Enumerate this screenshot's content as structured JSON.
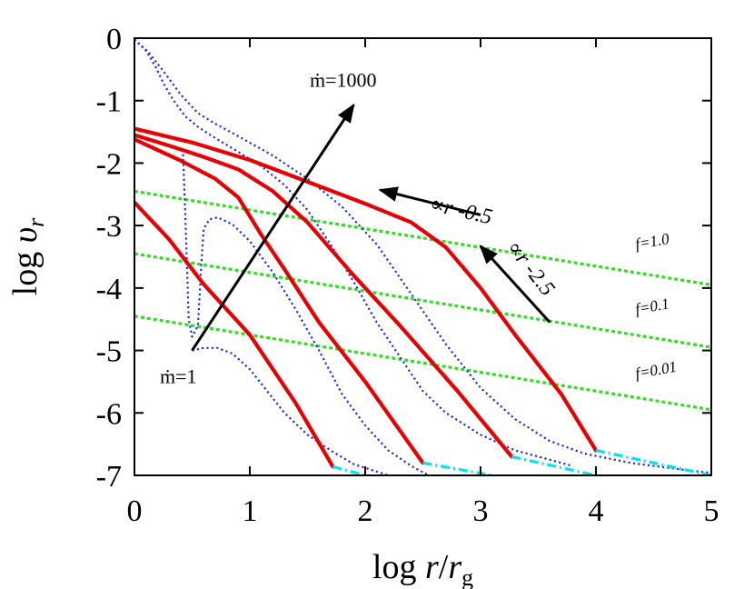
{
  "chart_data": {
    "type": "line",
    "xlabel": "log r/r_g",
    "ylabel": "log υ_r",
    "xlim": [
      0,
      5
    ],
    "ylim": [
      -7,
      0
    ],
    "x_ticks": [
      0,
      1,
      2,
      3,
      4,
      5
    ],
    "y_ticks": [
      0,
      -1,
      -2,
      -3,
      -4,
      -5,
      -6,
      -7
    ],
    "x_tick_labels": [
      "0",
      "1",
      "2",
      "3",
      "4",
      "5"
    ],
    "y_tick_labels": [
      "0",
      "-1",
      "-2",
      "-3",
      "-4",
      "-5",
      "-6",
      "-7"
    ],
    "series": [
      {
        "style": "red-solid",
        "points": [
          [
            0,
            -2.63
          ],
          [
            0.3,
            -3.22
          ],
          [
            0.6,
            -3.94
          ],
          [
            1.0,
            -4.75
          ],
          [
            1.4,
            -5.85
          ],
          [
            1.72,
            -6.86
          ]
        ]
      },
      {
        "style": "red-solid",
        "points": [
          [
            0,
            -1.62
          ],
          [
            0.4,
            -1.96
          ],
          [
            0.7,
            -2.25
          ],
          [
            0.9,
            -2.55
          ],
          [
            1.1,
            -3.15
          ],
          [
            1.3,
            -3.7
          ],
          [
            1.6,
            -4.55
          ],
          [
            2.0,
            -5.5
          ],
          [
            2.5,
            -6.8
          ]
        ]
      },
      {
        "style": "red-solid",
        "points": [
          [
            0,
            -1.55
          ],
          [
            0.3,
            -1.72
          ],
          [
            0.6,
            -1.9
          ],
          [
            0.9,
            -2.1
          ],
          [
            1.2,
            -2.45
          ],
          [
            1.5,
            -2.95
          ],
          [
            1.9,
            -3.8
          ],
          [
            2.3,
            -4.6
          ],
          [
            2.8,
            -5.65
          ],
          [
            3.27,
            -6.7
          ]
        ]
      },
      {
        "style": "red-solid",
        "points": [
          [
            0,
            -1.45
          ],
          [
            0.5,
            -1.67
          ],
          [
            1.0,
            -1.95
          ],
          [
            1.5,
            -2.3
          ],
          [
            2.0,
            -2.65
          ],
          [
            2.4,
            -2.95
          ],
          [
            2.7,
            -3.35
          ],
          [
            3.0,
            -4.0
          ],
          [
            3.3,
            -4.75
          ],
          [
            3.7,
            -5.7
          ],
          [
            4.0,
            -6.6
          ]
        ]
      },
      {
        "style": "blue-dotted",
        "points": [
          [
            0.0,
            -0.02
          ],
          [
            0.12,
            -0.22
          ],
          [
            0.26,
            -0.55
          ],
          [
            0.4,
            -0.9
          ],
          [
            0.55,
            -1.2
          ],
          [
            0.7,
            -1.37
          ],
          [
            0.9,
            -1.57
          ],
          [
            1.2,
            -1.88
          ],
          [
            1.5,
            -2.25
          ],
          [
            1.8,
            -2.7
          ],
          [
            2.1,
            -3.3
          ],
          [
            2.4,
            -4.1
          ],
          [
            2.7,
            -4.9
          ],
          [
            3.0,
            -5.6
          ],
          [
            3.3,
            -6.1
          ],
          [
            3.6,
            -6.45
          ],
          [
            3.9,
            -6.65
          ],
          [
            4.3,
            -6.8
          ],
          [
            4.8,
            -6.92
          ],
          [
            5.0,
            -6.96
          ]
        ]
      },
      {
        "style": "blue-dotted",
        "points": [
          [
            0.0,
            -0.02
          ],
          [
            0.1,
            -0.2
          ],
          [
            0.18,
            -0.45
          ],
          [
            0.26,
            -0.75
          ],
          [
            0.34,
            -1.0
          ],
          [
            0.44,
            -1.25
          ],
          [
            0.55,
            -1.42
          ],
          [
            0.7,
            -1.6
          ],
          [
            0.9,
            -1.82
          ],
          [
            1.1,
            -2.05
          ],
          [
            1.3,
            -2.35
          ],
          [
            1.5,
            -2.75
          ],
          [
            1.7,
            -3.3
          ],
          [
            1.9,
            -3.9
          ],
          [
            2.1,
            -4.55
          ],
          [
            2.3,
            -5.1
          ],
          [
            2.5,
            -5.65
          ],
          [
            2.7,
            -6.0
          ],
          [
            3.0,
            -6.35
          ],
          [
            3.3,
            -6.6
          ],
          [
            3.6,
            -6.75
          ],
          [
            3.8,
            -6.85
          ]
        ]
      },
      {
        "style": "blue-dotted",
        "points": [
          [
            0.42,
            -1.78
          ],
          [
            0.44,
            -2.8
          ],
          [
            0.46,
            -3.9
          ],
          [
            0.47,
            -4.5
          ],
          [
            0.5,
            -4.78
          ],
          [
            0.55,
            -4.6
          ],
          [
            0.58,
            -3.6
          ],
          [
            0.6,
            -3.05
          ],
          [
            0.65,
            -2.9
          ],
          [
            0.72,
            -2.87
          ],
          [
            0.85,
            -2.98
          ],
          [
            1.0,
            -3.25
          ],
          [
            1.2,
            -3.75
          ],
          [
            1.4,
            -4.35
          ],
          [
            1.6,
            -5.0
          ],
          [
            1.8,
            -5.7
          ],
          [
            2.0,
            -6.2
          ],
          [
            2.2,
            -6.6
          ],
          [
            2.4,
            -6.85
          ],
          [
            2.55,
            -7.0
          ]
        ]
      },
      {
        "style": "blue-dotted",
        "points": [
          [
            0.5,
            -5.0
          ],
          [
            0.6,
            -4.96
          ],
          [
            0.72,
            -4.96
          ],
          [
            0.85,
            -5.05
          ],
          [
            1.0,
            -5.3
          ],
          [
            1.15,
            -5.65
          ],
          [
            1.3,
            -6.0
          ],
          [
            1.5,
            -6.35
          ],
          [
            1.7,
            -6.6
          ],
          [
            1.9,
            -6.82
          ],
          [
            2.2,
            -7.0
          ]
        ]
      },
      {
        "name": "f=1.0",
        "style": "green-dashed",
        "points": [
          [
            0,
            -2.45
          ],
          [
            5,
            -3.95
          ]
        ]
      },
      {
        "name": "f=0.1",
        "style": "green-dashed",
        "points": [
          [
            0,
            -3.45
          ],
          [
            5,
            -4.95
          ]
        ]
      },
      {
        "name": "f=0.01",
        "style": "green-dashed",
        "points": [
          [
            0,
            -4.45
          ],
          [
            5,
            -5.95
          ]
        ]
      },
      {
        "style": "cyan-dashdot",
        "points": [
          [
            1.72,
            -6.86
          ],
          [
            2.0,
            -7.0
          ]
        ]
      },
      {
        "style": "cyan-dashdot",
        "points": [
          [
            2.5,
            -6.8
          ],
          [
            3.1,
            -7.0
          ]
        ]
      },
      {
        "style": "cyan-dashdot",
        "points": [
          [
            3.27,
            -6.7
          ],
          [
            4.0,
            -7.0
          ]
        ]
      },
      {
        "style": "cyan-dashdot",
        "points": [
          [
            4.0,
            -6.6
          ],
          [
            5.0,
            -7.0
          ]
        ]
      }
    ],
    "annotations": [
      {
        "text": "ṁ=1000",
        "anchor": [
          1.52,
          -0.78
        ],
        "style": "big"
      },
      {
        "text": "ṁ=1",
        "anchor": [
          0.22,
          -5.52
        ],
        "style": "big"
      },
      {
        "text": "∝r -0.5",
        "anchor": [
          2.55,
          -2.75
        ],
        "style": "mid",
        "rotate": 13
      },
      {
        "text": "∝r -2.5",
        "anchor": [
          3.22,
          -3.35
        ],
        "style": "mid",
        "rotate": 52
      },
      {
        "text": "f=1.0",
        "anchor": [
          4.35,
          -3.38
        ],
        "style": "small",
        "rotate": -10
      },
      {
        "text": "f=0.1",
        "anchor": [
          4.35,
          -4.42
        ],
        "style": "small",
        "rotate": -10
      },
      {
        "text": "f=0.01",
        "anchor": [
          4.35,
          -5.45
        ],
        "style": "small",
        "rotate": -10
      }
    ],
    "arrows": [
      {
        "from": [
          0.5,
          -5.0
        ],
        "to": [
          1.9,
          -1.07
        ]
      },
      {
        "from": [
          3.0,
          -2.83
        ],
        "to": [
          2.13,
          -2.43
        ]
      },
      {
        "from": [
          3.6,
          -4.55
        ],
        "to": [
          3.0,
          -3.33
        ]
      }
    ],
    "colors": {
      "red-solid": "#e80000",
      "blue-dotted": "#1f2ee6",
      "green-dashed": "#33dd22",
      "cyan-dashdot": "#00e5f0",
      "arrow": "#000000"
    }
  }
}
